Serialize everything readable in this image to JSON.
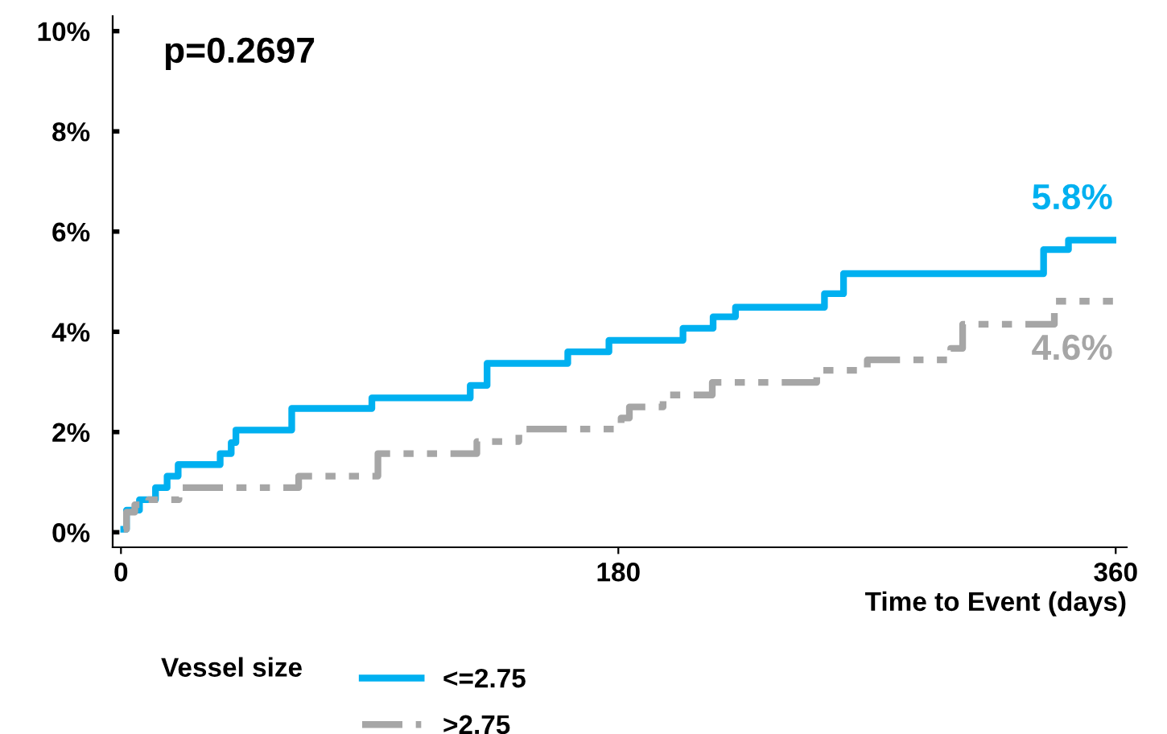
{
  "chart_data": {
    "type": "step",
    "xlabel": "Time to Event (days)",
    "legend_title": "Vessel size",
    "xlim": [
      -3,
      364
    ],
    "xticks": [
      0,
      180,
      360
    ],
    "ylim": [
      -0.3,
      10.3
    ],
    "yticks": [
      {
        "value": 0,
        "label": "0%"
      },
      {
        "value": 2,
        "label": "2%"
      },
      {
        "value": 4,
        "label": "4%"
      },
      {
        "value": 6,
        "label": "6%"
      },
      {
        "value": 8,
        "label": "8%"
      },
      {
        "value": 10,
        "label": "10%"
      }
    ],
    "legend": "bottom",
    "grid": false,
    "series": [
      {
        "name": "<=2.75",
        "color": "#00b0f0",
        "line_style": "solid",
        "x": [
          1,
          2,
          6.7,
          12.5,
          16.7,
          20.7,
          35.9,
          39.9,
          41.6,
          61.8,
          90.8,
          126.4,
          132.5,
          161.7,
          176.6,
          203.4,
          214.3,
          222.4,
          254.6,
          261.5,
          333.9,
          342.9,
          359
        ],
        "values": [
          0.06,
          0.44,
          0.65,
          0.89,
          1.12,
          1.35,
          1.57,
          1.79,
          2.04,
          2.47,
          2.68,
          2.93,
          3.37,
          3.6,
          3.83,
          4.07,
          4.3,
          4.49,
          4.76,
          5.16,
          5.64,
          5.83,
          5.83
        ]
      },
      {
        "name": ">2.75",
        "color": "#a6a6a6",
        "line_style": "dashed",
        "x": [
          1,
          2,
          5,
          10,
          21,
          64.3,
          93,
          128.8,
          144,
          181,
          184,
          196.2,
          214,
          251.8,
          270.1,
          300.3,
          304.6,
          337.8,
          359
        ],
        "values": [
          0.06,
          0.4,
          0.55,
          0.65,
          0.89,
          1.12,
          1.57,
          1.81,
          2.06,
          2.28,
          2.5,
          2.74,
          2.99,
          3.23,
          3.44,
          3.67,
          4.15,
          4.61,
          4.61
        ]
      }
    ],
    "annotations": [
      {
        "text": "5.8%",
        "x": 359,
        "y": 5.83
      },
      {
        "text": "4.6%",
        "x": 359,
        "y": 4.61
      },
      "p=0.2697"
    ]
  }
}
